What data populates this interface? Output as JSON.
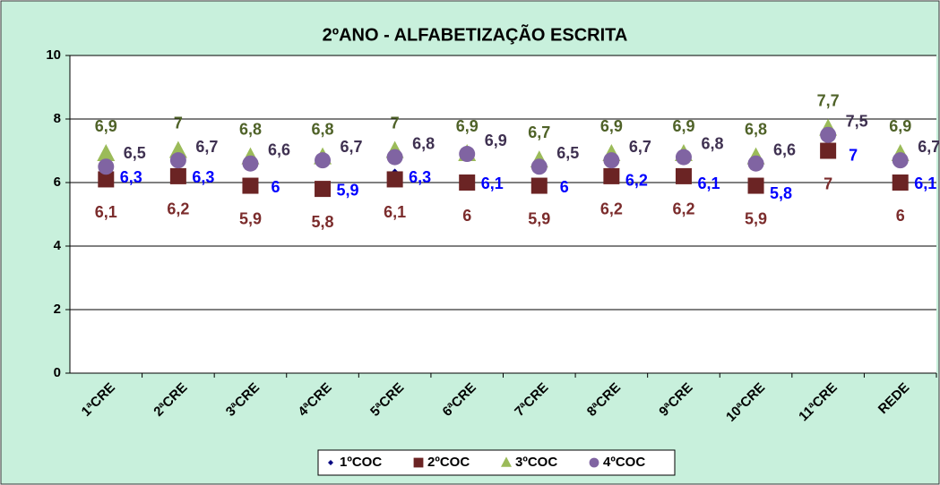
{
  "chart_data": {
    "type": "scatter",
    "title": "2ºANO - ALFABETIZAÇÃO ESCRITA",
    "categories": [
      "1ªCRE",
      "2ªCRE",
      "3ªCRE",
      "4ªCRE",
      "5ªCRE",
      "6ªCRE",
      "7ªCRE",
      "8ªCRE",
      "9ªCRE",
      "10ªCRE",
      "11ªCRE",
      "REDE"
    ],
    "series": [
      {
        "name": "1ºCOC",
        "color": "#000080",
        "label_color": "#0000ff",
        "marker": "diamond",
        "values": [
          6.3,
          6.3,
          6,
          5.9,
          6.3,
          6.1,
          6,
          6.2,
          6.1,
          5.8,
          7,
          6.1
        ],
        "value_labels": [
          "6,3",
          "6,3",
          "6",
          "5,9",
          "6,3",
          "6,1",
          "6",
          "6,2",
          "6,1",
          "5,8",
          "7",
          "6,1"
        ]
      },
      {
        "name": "2ºCOC",
        "color": "#6b2424",
        "label_color": "#7b2c2c",
        "marker": "square",
        "values": [
          6.1,
          6.2,
          5.9,
          5.8,
          6.1,
          6,
          5.9,
          6.2,
          6.2,
          5.9,
          7,
          6
        ],
        "value_labels": [
          "6,1",
          "6,2",
          "5,9",
          "5,8",
          "6,1",
          "6",
          "5,9",
          "6,2",
          "6,2",
          "5,9",
          "7",
          "6"
        ]
      },
      {
        "name": "3ºCOC",
        "color": "#9bbb59",
        "label_color": "#4f6228",
        "marker": "triangle",
        "values": [
          6.9,
          7,
          6.8,
          6.8,
          7,
          6.9,
          6.7,
          6.9,
          6.9,
          6.8,
          7.7,
          6.9
        ],
        "value_labels": [
          "6,9",
          "7",
          "6,8",
          "6,8",
          "7",
          "6,9",
          "6,7",
          "6,9",
          "6,9",
          "6,8",
          "7,7",
          "6,9"
        ]
      },
      {
        "name": "4ºCOC",
        "color": "#8064a2",
        "label_color": "#3f3151",
        "marker": "circle",
        "values": [
          6.5,
          6.7,
          6.6,
          6.7,
          6.8,
          6.9,
          6.5,
          6.7,
          6.8,
          6.6,
          7.5,
          6.7
        ],
        "value_labels": [
          "6,5",
          "6,7",
          "6,6",
          "6,7",
          "6,8",
          "6,9",
          "6,5",
          "6,7",
          "6,8",
          "6,6",
          "7,5",
          "6,7"
        ]
      }
    ],
    "ylim": [
      0,
      10
    ],
    "yticks": [
      0,
      2,
      4,
      6,
      8,
      10
    ],
    "grid": true
  }
}
